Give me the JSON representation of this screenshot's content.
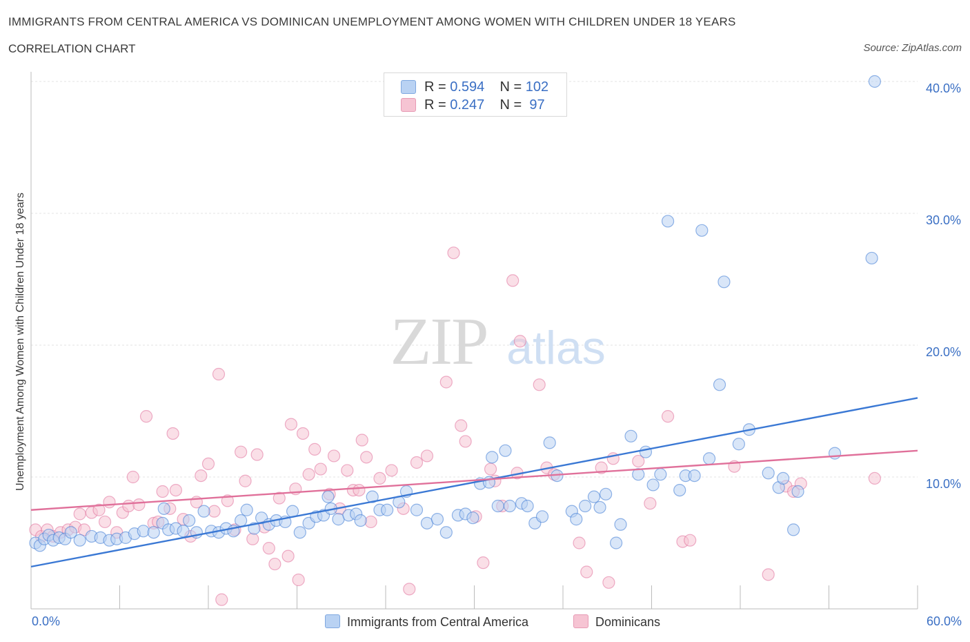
{
  "header": {
    "title": "IMMIGRANTS FROM CENTRAL AMERICA VS DOMINICAN UNEMPLOYMENT AMONG WOMEN WITH CHILDREN UNDER 18 YEARS",
    "subtitle": "CORRELATION CHART",
    "source": "Source: ZipAtlas.com"
  },
  "watermark": {
    "zip": "ZIP",
    "atlas": "atlas"
  },
  "legend_top": {
    "rows": [
      {
        "r_label": "R = ",
        "r_value": "0.594",
        "n_label": "N = ",
        "n_value": "102",
        "color": "#a9c6ee"
      },
      {
        "r_label": "R = ",
        "r_value": "0.247",
        "n_label": "N = ",
        "n_value": " 97",
        "color": "#f4b9cb"
      }
    ]
  },
  "x_axis_labels": {
    "min": "0.0%",
    "max": "60.0%"
  },
  "chart_data": {
    "type": "scatter",
    "title": "IMMIGRANTS FROM CENTRAL AMERICA VS DOMINICAN UNEMPLOYMENT AMONG WOMEN WITH CHILDREN UNDER 18 YEARS",
    "xlabel": "",
    "ylabel": "Unemployment Among Women with Children Under 18 years",
    "xlim": [
      0,
      60
    ],
    "ylim": [
      0,
      40
    ],
    "y_ticks": [
      10,
      20,
      30,
      40
    ],
    "y_tick_labels": [
      "10.0%",
      "20.0%",
      "30.0%",
      "40.0%"
    ],
    "grid": true,
    "legend_position": "bottom",
    "series": [
      {
        "name": "Immigrants from Central America",
        "color": "#3a78d4",
        "fill": "#b9d2f3",
        "trend": {
          "x": [
            0,
            60
          ],
          "y": [
            3.2,
            16.0
          ]
        },
        "points": [
          [
            0.3,
            5.0
          ],
          [
            0.6,
            4.8
          ],
          [
            0.9,
            5.3
          ],
          [
            1.2,
            5.6
          ],
          [
            1.5,
            5.2
          ],
          [
            1.9,
            5.4
          ],
          [
            2.3,
            5.3
          ],
          [
            2.7,
            5.8
          ],
          [
            3.3,
            5.2
          ],
          [
            4.1,
            5.5
          ],
          [
            4.7,
            5.4
          ],
          [
            5.3,
            5.2
          ],
          [
            5.8,
            5.3
          ],
          [
            6.4,
            5.4
          ],
          [
            7.0,
            5.7
          ],
          [
            7.6,
            5.9
          ],
          [
            8.3,
            5.8
          ],
          [
            8.9,
            6.5
          ],
          [
            9.0,
            7.6
          ],
          [
            9.3,
            6.0
          ],
          [
            9.8,
            6.1
          ],
          [
            10.3,
            5.9
          ],
          [
            10.7,
            6.7
          ],
          [
            11.2,
            5.8
          ],
          [
            11.7,
            7.4
          ],
          [
            12.2,
            5.9
          ],
          [
            12.7,
            5.8
          ],
          [
            13.2,
            6.1
          ],
          [
            13.7,
            5.9
          ],
          [
            14.2,
            6.7
          ],
          [
            14.6,
            7.5
          ],
          [
            15.1,
            6.1
          ],
          [
            15.6,
            6.9
          ],
          [
            16.1,
            6.4
          ],
          [
            16.6,
            6.7
          ],
          [
            17.2,
            6.6
          ],
          [
            17.7,
            7.4
          ],
          [
            18.2,
            5.8
          ],
          [
            18.8,
            6.5
          ],
          [
            19.3,
            7.0
          ],
          [
            19.8,
            7.1
          ],
          [
            20.1,
            8.5
          ],
          [
            20.3,
            7.6
          ],
          [
            20.8,
            6.8
          ],
          [
            21.5,
            7.1
          ],
          [
            22.0,
            7.2
          ],
          [
            22.3,
            6.7
          ],
          [
            23.1,
            8.5
          ],
          [
            23.6,
            7.5
          ],
          [
            24.1,
            7.5
          ],
          [
            24.9,
            8.1
          ],
          [
            25.4,
            8.9
          ],
          [
            26.1,
            7.5
          ],
          [
            26.8,
            6.5
          ],
          [
            27.5,
            6.8
          ],
          [
            28.1,
            5.8
          ],
          [
            28.9,
            7.1
          ],
          [
            29.4,
            7.2
          ],
          [
            29.9,
            6.9
          ],
          [
            30.4,
            9.5
          ],
          [
            31.0,
            9.6
          ],
          [
            31.2,
            11.5
          ],
          [
            31.6,
            7.8
          ],
          [
            32.1,
            12.0
          ],
          [
            32.4,
            7.8
          ],
          [
            33.2,
            8.0
          ],
          [
            33.6,
            7.8
          ],
          [
            34.1,
            6.5
          ],
          [
            34.6,
            7.0
          ],
          [
            35.1,
            12.6
          ],
          [
            35.6,
            10.1
          ],
          [
            36.6,
            7.4
          ],
          [
            36.9,
            6.8
          ],
          [
            37.5,
            7.8
          ],
          [
            38.1,
            8.5
          ],
          [
            38.5,
            7.7
          ],
          [
            38.9,
            8.7
          ],
          [
            39.6,
            5.0
          ],
          [
            39.9,
            6.4
          ],
          [
            40.6,
            13.1
          ],
          [
            41.1,
            10.2
          ],
          [
            41.6,
            11.9
          ],
          [
            42.1,
            9.4
          ],
          [
            42.6,
            10.2
          ],
          [
            43.1,
            29.4
          ],
          [
            43.9,
            9.0
          ],
          [
            44.3,
            10.1
          ],
          [
            44.9,
            10.1
          ],
          [
            45.4,
            28.7
          ],
          [
            45.9,
            11.4
          ],
          [
            46.6,
            17.0
          ],
          [
            46.9,
            24.8
          ],
          [
            47.9,
            12.5
          ],
          [
            48.6,
            13.6
          ],
          [
            49.9,
            10.3
          ],
          [
            50.6,
            9.2
          ],
          [
            50.9,
            9.9
          ],
          [
            51.6,
            6.0
          ],
          [
            51.9,
            8.9
          ],
          [
            54.4,
            11.8
          ],
          [
            56.9,
            26.6
          ],
          [
            57.1,
            40.0
          ]
        ]
      },
      {
        "name": "Dominicans",
        "color": "#e0709a",
        "fill": "#f6c4d3",
        "trend": {
          "x": [
            0,
            60
          ],
          "y": [
            7.5,
            12.0
          ]
        },
        "points": [
          [
            0.3,
            6.0
          ],
          [
            0.7,
            5.5
          ],
          [
            1.1,
            6.0
          ],
          [
            1.5,
            5.5
          ],
          [
            2.0,
            5.8
          ],
          [
            2.5,
            6.0
          ],
          [
            3.0,
            6.2
          ],
          [
            3.3,
            7.2
          ],
          [
            3.6,
            6.0
          ],
          [
            4.1,
            7.3
          ],
          [
            4.6,
            7.5
          ],
          [
            5.0,
            6.6
          ],
          [
            5.3,
            8.1
          ],
          [
            5.8,
            5.8
          ],
          [
            6.2,
            7.3
          ],
          [
            6.6,
            7.8
          ],
          [
            6.9,
            10.0
          ],
          [
            7.3,
            7.9
          ],
          [
            7.8,
            14.6
          ],
          [
            8.3,
            6.5
          ],
          [
            8.6,
            6.6
          ],
          [
            8.9,
            8.9
          ],
          [
            9.4,
            7.6
          ],
          [
            9.8,
            9.0
          ],
          [
            10.3,
            6.8
          ],
          [
            10.8,
            5.5
          ],
          [
            11.2,
            8.1
          ],
          [
            11.5,
            10.1
          ],
          [
            12.0,
            11.0
          ],
          [
            12.4,
            7.4
          ],
          [
            12.7,
            17.8
          ],
          [
            12.9,
            0.7
          ],
          [
            13.3,
            8.2
          ],
          [
            13.8,
            6.0
          ],
          [
            14.2,
            11.9
          ],
          [
            14.5,
            9.7
          ],
          [
            15.0,
            5.3
          ],
          [
            15.3,
            11.7
          ],
          [
            15.8,
            6.2
          ],
          [
            16.1,
            4.6
          ],
          [
            16.5,
            3.4
          ],
          [
            16.8,
            8.4
          ],
          [
            17.4,
            4.0
          ],
          [
            17.6,
            14.0
          ],
          [
            18.1,
            2.2
          ],
          [
            18.4,
            13.3
          ],
          [
            18.8,
            10.2
          ],
          [
            19.2,
            12.1
          ],
          [
            19.6,
            10.6
          ],
          [
            20.2,
            8.7
          ],
          [
            20.5,
            11.6
          ],
          [
            20.9,
            7.6
          ],
          [
            21.4,
            10.5
          ],
          [
            21.8,
            9.0
          ],
          [
            22.2,
            9.0
          ],
          [
            22.7,
            11.5
          ],
          [
            23.0,
            6.6
          ],
          [
            23.6,
            9.9
          ],
          [
            24.4,
            10.5
          ],
          [
            25.2,
            7.6
          ],
          [
            25.6,
            1.5
          ],
          [
            26.1,
            11.1
          ],
          [
            26.8,
            11.6
          ],
          [
            28.1,
            17.2
          ],
          [
            28.6,
            27.0
          ],
          [
            29.1,
            13.9
          ],
          [
            29.4,
            12.7
          ],
          [
            30.1,
            7.0
          ],
          [
            30.6,
            3.5
          ],
          [
            31.1,
            10.6
          ],
          [
            31.4,
            9.7
          ],
          [
            31.9,
            7.8
          ],
          [
            32.6,
            24.9
          ],
          [
            32.9,
            10.3
          ],
          [
            33.1,
            20.3
          ],
          [
            34.4,
            17.0
          ],
          [
            34.9,
            10.7
          ],
          [
            35.4,
            10.2
          ],
          [
            37.1,
            5.0
          ],
          [
            37.6,
            2.8
          ],
          [
            38.6,
            10.7
          ],
          [
            39.1,
            2.0
          ],
          [
            39.4,
            11.4
          ],
          [
            41.1,
            11.2
          ],
          [
            41.9,
            8.0
          ],
          [
            43.1,
            14.6
          ],
          [
            44.1,
            5.1
          ],
          [
            44.6,
            5.2
          ],
          [
            47.6,
            10.8
          ],
          [
            49.9,
            2.6
          ],
          [
            51.1,
            9.3
          ],
          [
            51.6,
            8.9
          ],
          [
            52.1,
            9.5
          ],
          [
            57.1,
            9.9
          ],
          [
            9.6,
            13.3
          ],
          [
            17.9,
            9.1
          ],
          [
            22.4,
            12.8
          ]
        ]
      }
    ]
  }
}
